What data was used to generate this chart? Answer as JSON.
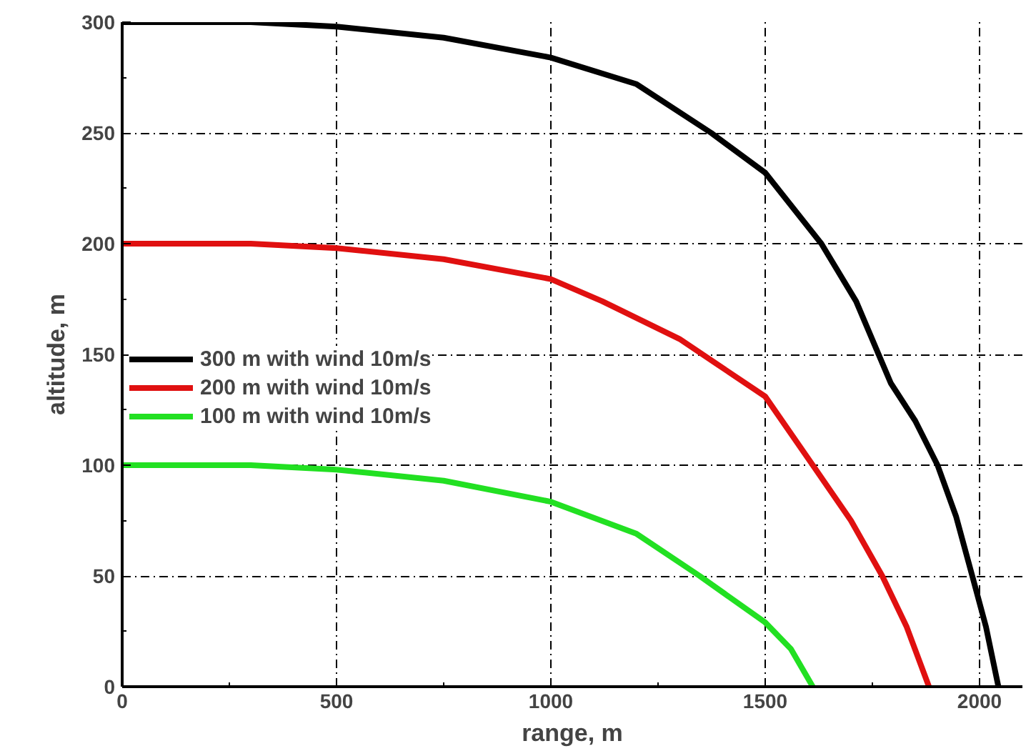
{
  "chart_data": {
    "type": "line",
    "xlabel": "range, m",
    "ylabel": "altitude, m",
    "xlim": [
      0,
      2100
    ],
    "ylim": [
      0,
      300
    ],
    "xticks": [
      0,
      500,
      1000,
      1500,
      2000
    ],
    "yticks": [
      0,
      50,
      100,
      150,
      200,
      250,
      300
    ],
    "grid": true,
    "legend": "left",
    "line_style": "solid",
    "marker": "none",
    "series": [
      {
        "name": "300 m with wind 10m/s",
        "color": "#000000",
        "x": [
          0,
          300,
          500,
          750,
          1000,
          1200,
          1374,
          1500,
          1631,
          1712,
          1793,
          1850,
          1902,
          1945,
          1983,
          2015,
          2044
        ],
        "values": [
          300,
          300,
          298,
          293,
          284,
          272,
          250,
          232,
          200,
          174,
          137,
          120,
          100,
          77,
          50,
          27,
          0
        ]
      },
      {
        "name": "200 m with wind 10m/s",
        "color": "#e01010",
        "x": [
          0,
          300,
          500,
          750,
          1000,
          1120,
          1300,
          1500,
          1611,
          1700,
          1773,
          1830,
          1882
        ],
        "values": [
          200,
          200,
          198,
          193,
          184,
          174,
          157,
          131,
          100,
          75,
          50,
          27,
          0
        ]
      },
      {
        "name": "100 m with wind 10m/s",
        "color": "#22e022",
        "x": [
          0,
          300,
          500,
          750,
          1000,
          1200,
          1347,
          1500,
          1560,
          1611
        ],
        "values": [
          100,
          100,
          98,
          93,
          83.5,
          69,
          50,
          29,
          17,
          0
        ]
      }
    ]
  }
}
